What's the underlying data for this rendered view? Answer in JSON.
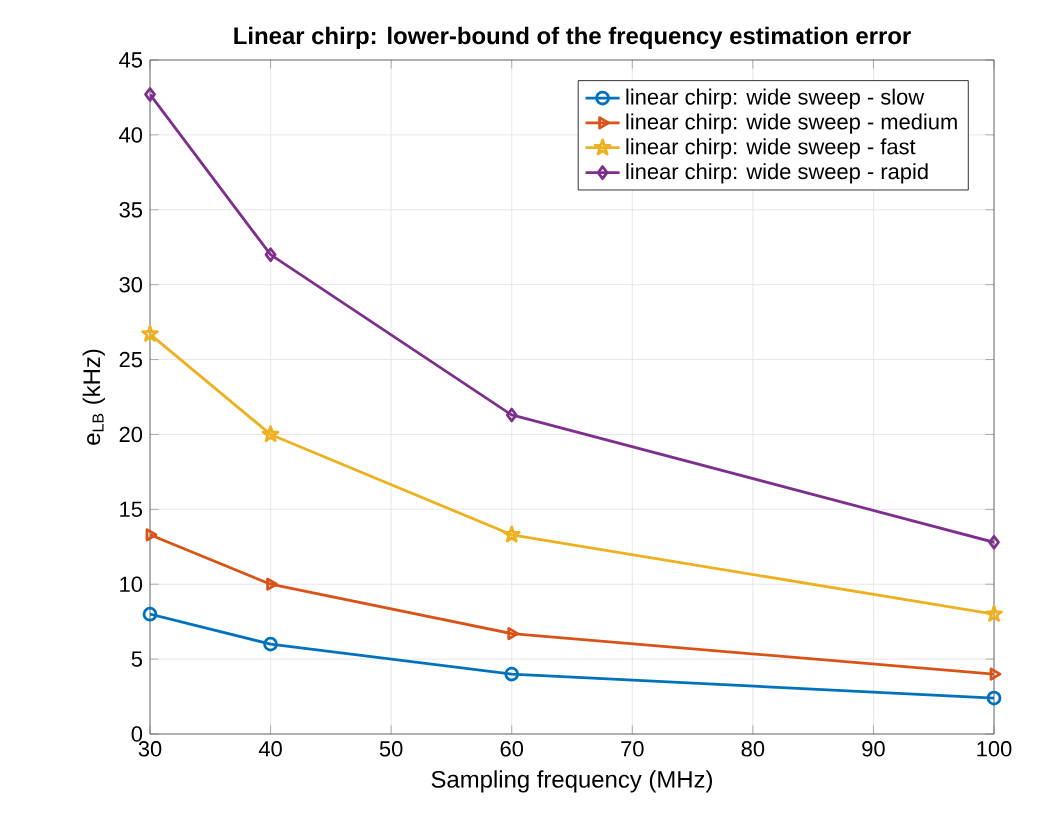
{
  "chart_data": {
    "type": "line",
    "title": "Linear chirp: lower-bound of the frequency estimation error",
    "xlabel": "Sampling frequency (MHz)",
    "ylabel": "e$_{LB}$ (kHz)",
    "x": [
      30,
      40,
      60,
      100
    ],
    "series": [
      {
        "name": "linear chirp: wide sweep - slow",
        "color": "#0072bd",
        "marker": "circle",
        "values": [
          8,
          6,
          4,
          2.4
        ]
      },
      {
        "name": "linear chirp: wide sweep - medium",
        "color": "#d95319",
        "marker": "triangle",
        "values": [
          13.3,
          10,
          6.7,
          4
        ]
      },
      {
        "name": "linear chirp: wide sweep - fast",
        "color": "#edb120",
        "marker": "star",
        "values": [
          26.7,
          20,
          13.3,
          8
        ]
      },
      {
        "name": "linear chirp: wide sweep - rapid",
        "color": "#7e2f8e",
        "marker": "diamond",
        "values": [
          42.7,
          32,
          21.3,
          12.8
        ]
      }
    ],
    "xlim": [
      30,
      100
    ],
    "xticks": [
      30,
      40,
      50,
      60,
      70,
      80,
      90,
      100
    ],
    "ylim": [
      0,
      45
    ],
    "yticks": [
      0,
      5,
      10,
      15,
      20,
      25,
      30,
      35,
      40,
      45
    ],
    "grid": true,
    "legend": "top right",
    "line_style": "solid"
  }
}
